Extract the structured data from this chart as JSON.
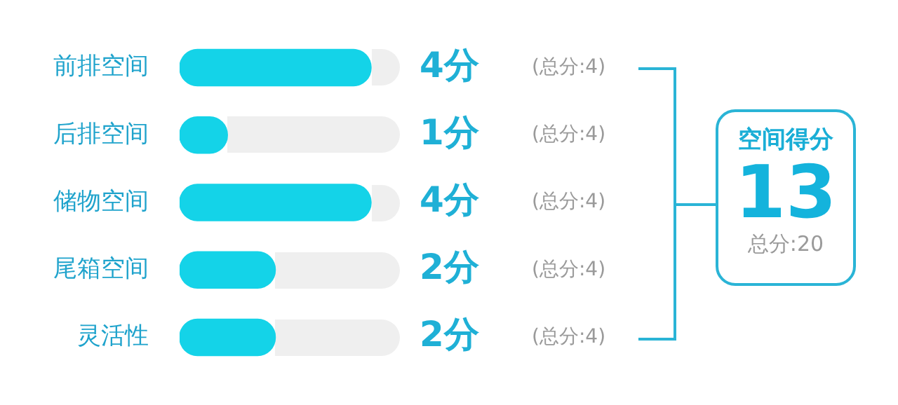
{
  "chart_data": {
    "type": "bar",
    "orientation": "horizontal",
    "categories": [
      "前排空间",
      "后排空间",
      "储物空间",
      "尾箱空间",
      "灵活性"
    ],
    "values": [
      4,
      1,
      4,
      2,
      2
    ],
    "value_labels": [
      "4分",
      "1分",
      "4分",
      "2分",
      "2分"
    ],
    "color": "#14d3e8",
    "xlim": [
      0,
      4.6
    ],
    "tick_labels": "y",
    "legend": false,
    "annotations": [
      "(总分:4)",
      "(总分:4)",
      "(总分:4)",
      "(总分:4)",
      "(总分:4)",
      "空间得分",
      "13",
      "总分:20"
    ]
  }
}
